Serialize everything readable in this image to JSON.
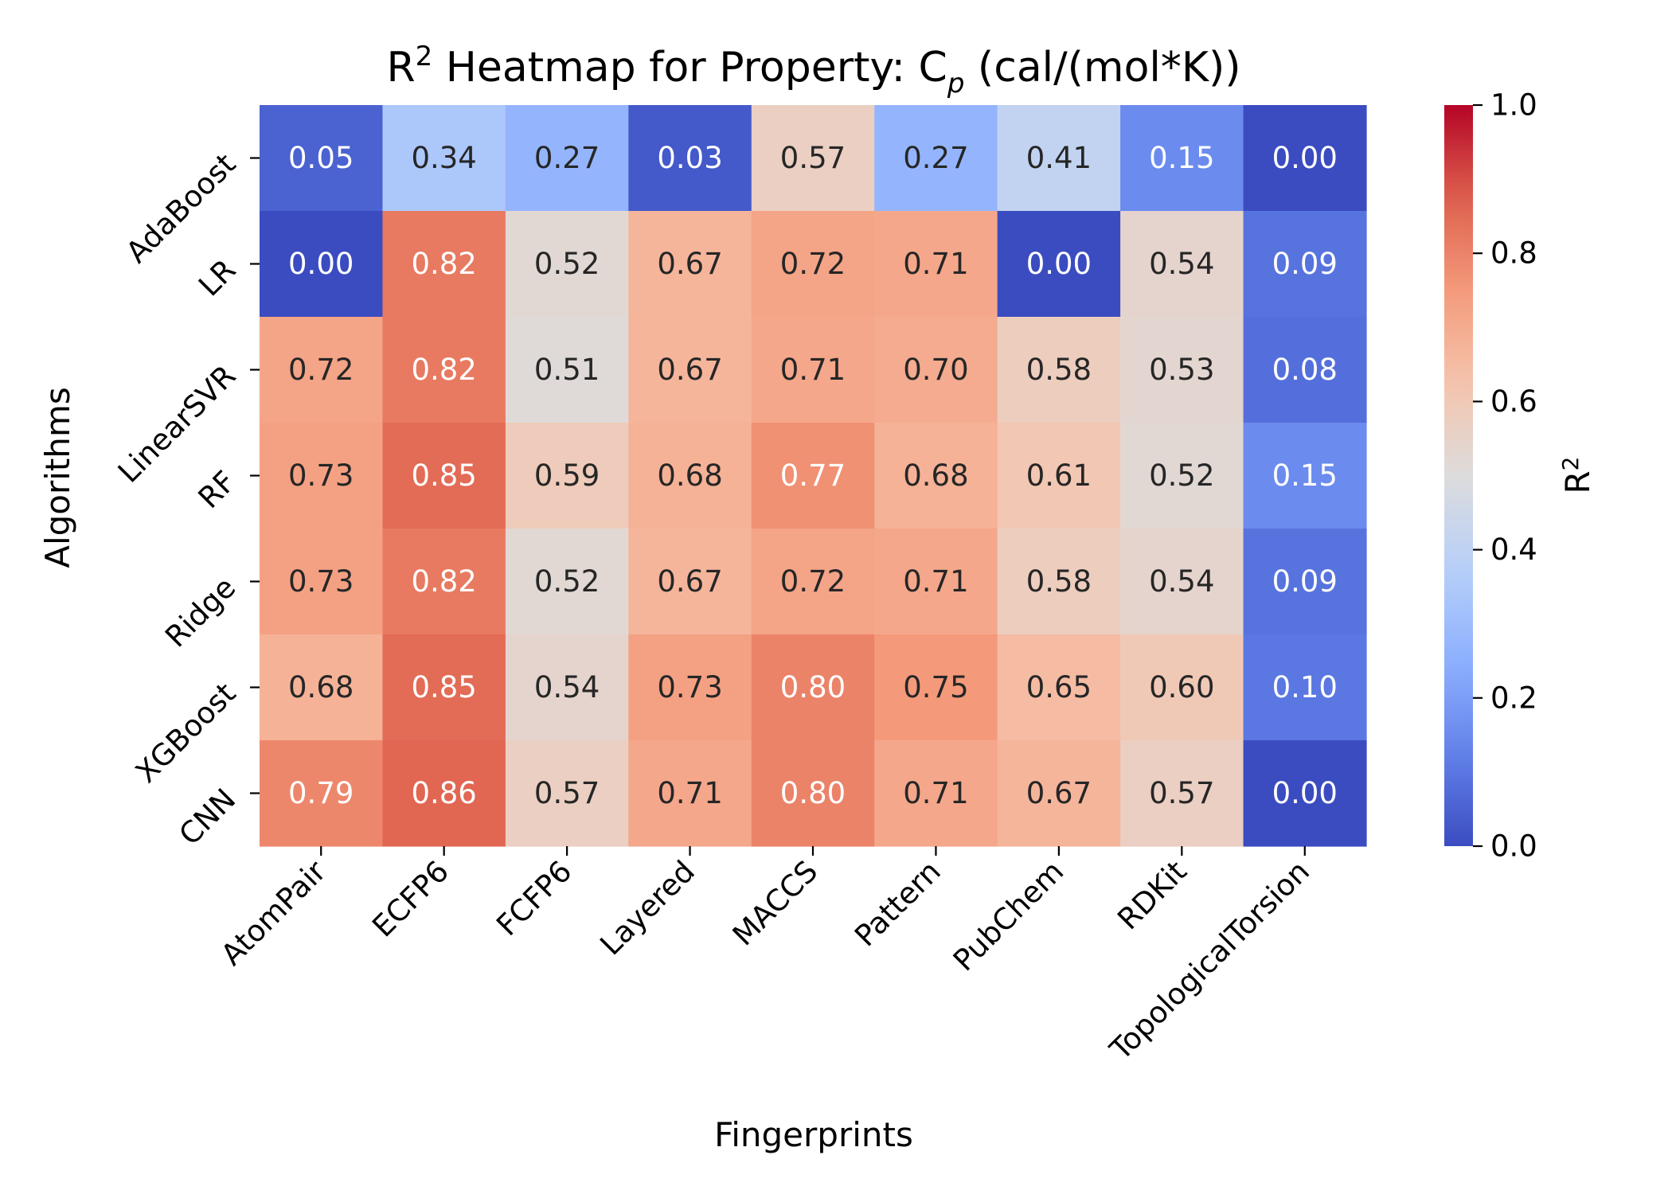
{
  "chart_data": {
    "type": "heatmap",
    "title": {
      "text_prefix": "R",
      "text_prefix_sup": "2",
      "text_middle": " Heatmap for Property: C",
      "text_sub": "p",
      "text_suffix": " (cal/(mol*K))"
    },
    "xlabel": "Fingerprints",
    "ylabel": "Algorithms",
    "x_categories": [
      "AtomPair",
      "ECFP6",
      "FCFP6",
      "Layered",
      "MACCS",
      "Pattern",
      "PubChem",
      "RDKit",
      "TopologicalTorsion"
    ],
    "y_categories": [
      "AdaBoost",
      "LR",
      "LinearSVR",
      "RF",
      "Ridge",
      "XGBoost",
      "CNN"
    ],
    "values": [
      [
        0.05,
        0.34,
        0.27,
        0.03,
        0.57,
        0.27,
        0.41,
        0.15,
        0.0
      ],
      [
        0.0,
        0.82,
        0.52,
        0.67,
        0.72,
        0.71,
        0.0,
        0.54,
        0.09
      ],
      [
        0.72,
        0.82,
        0.51,
        0.67,
        0.71,
        0.7,
        0.58,
        0.53,
        0.08
      ],
      [
        0.73,
        0.85,
        0.59,
        0.68,
        0.77,
        0.68,
        0.61,
        0.52,
        0.15
      ],
      [
        0.73,
        0.82,
        0.52,
        0.67,
        0.72,
        0.71,
        0.58,
        0.54,
        0.09
      ],
      [
        0.68,
        0.85,
        0.54,
        0.73,
        0.8,
        0.75,
        0.65,
        0.6,
        0.1
      ],
      [
        0.79,
        0.86,
        0.57,
        0.71,
        0.8,
        0.71,
        0.67,
        0.57,
        0.0
      ]
    ],
    "colormap": "coolwarm",
    "vmin": 0.0,
    "vmax": 1.0,
    "colorbar": {
      "label_base": "R",
      "label_sup": "2",
      "ticks": [
        0.0,
        0.2,
        0.4,
        0.6,
        0.8,
        1.0
      ],
      "tick_labels": [
        "0.0",
        "0.2",
        "0.4",
        "0.6",
        "0.8",
        "1.0"
      ]
    },
    "annotations": true,
    "value_format": "2 decimals"
  }
}
